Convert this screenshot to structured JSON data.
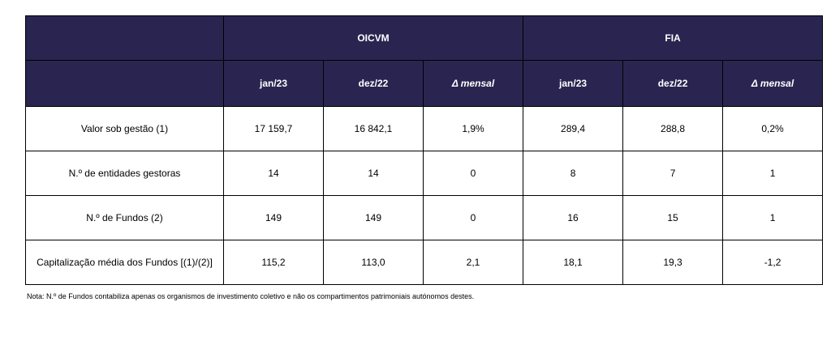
{
  "table": {
    "group_headers": [
      "OICVM",
      "FIA"
    ],
    "sub_headers": [
      "jan/23",
      "dez/22",
      "Δ mensal",
      "jan/23",
      "dez/22",
      "Δ mensal"
    ],
    "rows": [
      {
        "label": "Valor sob gestão (1)",
        "values": [
          "17 159,7",
          "16 842,1",
          "1,9%",
          "289,4",
          "288,8",
          "0,2%"
        ]
      },
      {
        "label": "N.º de entidades gestoras",
        "values": [
          "14",
          "14",
          "0",
          "8",
          "7",
          "1"
        ]
      },
      {
        "label": "N.º de Fundos (2)",
        "values": [
          "149",
          "149",
          "0",
          "16",
          "15",
          "1"
        ]
      },
      {
        "label": "Capitalização média dos Fundos [(1)/(2)]",
        "values": [
          "115,2",
          "113,0",
          "2,1",
          "18,1",
          "19,3",
          "-1,2"
        ]
      }
    ]
  },
  "colors": {
    "header_bg": "#2a2550",
    "header_text": "#ffffff"
  },
  "note": "Nota: N.º de Fundos contabiliza apenas os organismos de investimento coletivo e não os compartimentos patrimoniais autónomos destes."
}
